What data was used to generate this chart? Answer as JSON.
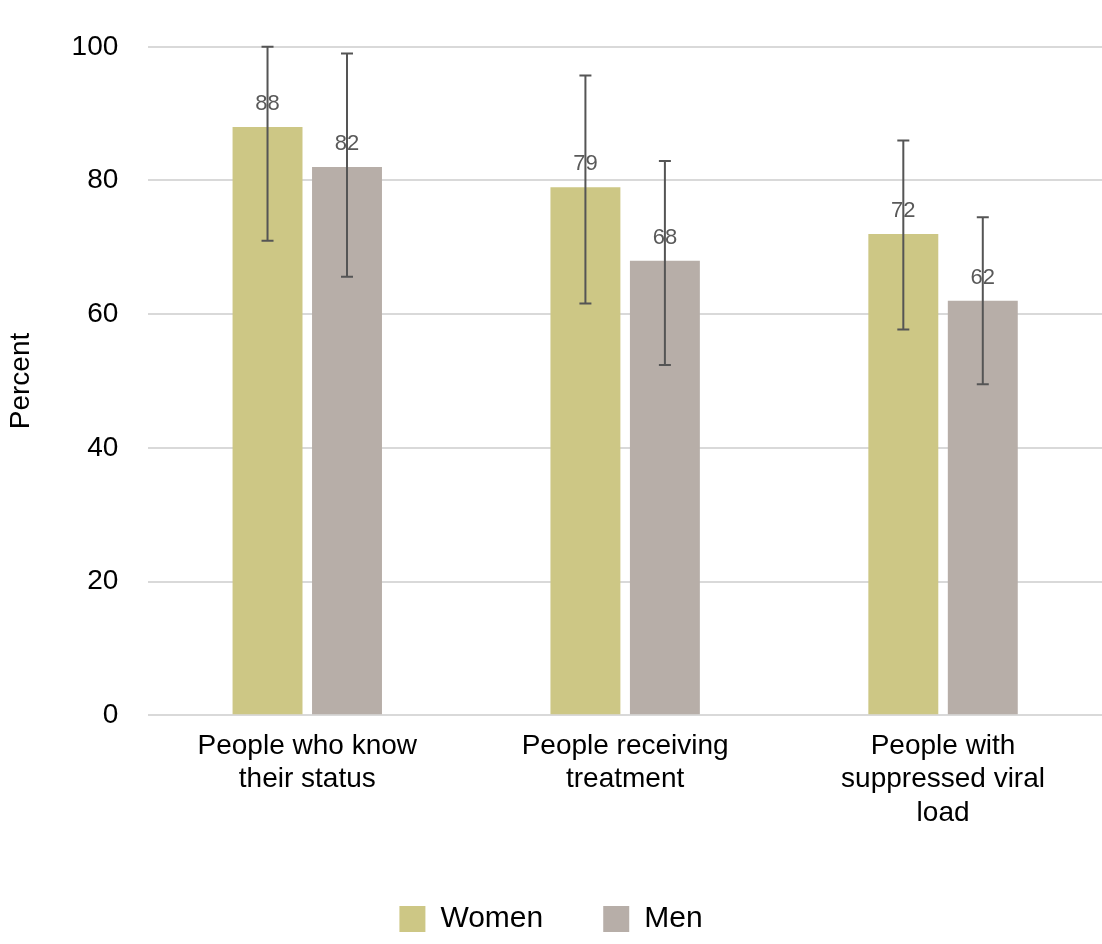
{
  "chart_data": {
    "type": "bar",
    "ylabel": "Percent",
    "categories": [
      "People who know their status",
      "People receiving treatment",
      "People with suppressed viral load"
    ],
    "series": [
      {
        "name": "Women",
        "color": "#cdc785",
        "values": [
          88,
          79,
          72
        ],
        "errors": [
          [
            71,
            100
          ],
          [
            61.6,
            95.7
          ],
          [
            57.7,
            86
          ]
        ]
      },
      {
        "name": "Men",
        "color": "#b7aea8",
        "values": [
          82,
          68,
          62
        ],
        "errors": [
          [
            65.6,
            99
          ],
          [
            52.4,
            82.9
          ],
          [
            49.5,
            74.5
          ]
        ]
      }
    ],
    "ylim": [
      0,
      100
    ],
    "yticks": [
      0,
      20,
      40,
      60,
      80,
      100
    ],
    "grid": "y",
    "legend": "bottom",
    "data_labels": true
  }
}
